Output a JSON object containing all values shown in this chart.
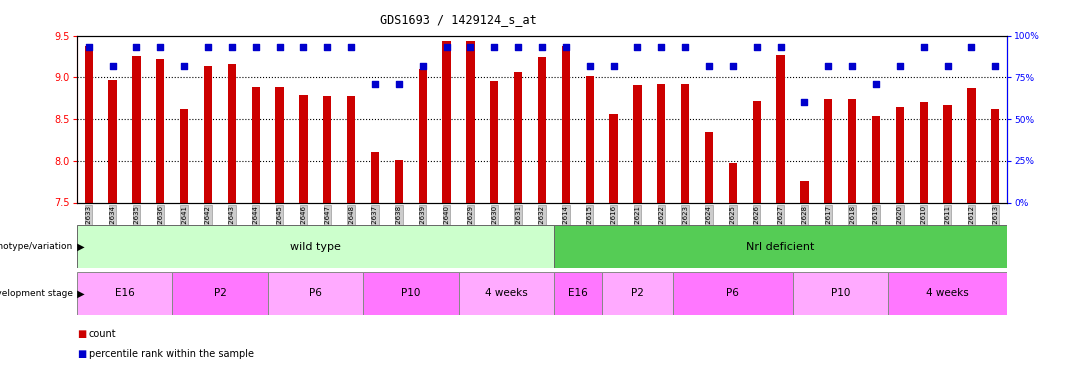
{
  "title": "GDS1693 / 1429124_s_at",
  "samples": [
    "GSM92633",
    "GSM92634",
    "GSM92635",
    "GSM92636",
    "GSM92641",
    "GSM92642",
    "GSM92643",
    "GSM92644",
    "GSM92645",
    "GSM92646",
    "GSM92647",
    "GSM92648",
    "GSM92637",
    "GSM92638",
    "GSM92639",
    "GSM92640",
    "GSM92629",
    "GSM92630",
    "GSM92631",
    "GSM92632",
    "GSM92614",
    "GSM92615",
    "GSM92616",
    "GSM92621",
    "GSM92622",
    "GSM92623",
    "GSM92624",
    "GSM92625",
    "GSM92626",
    "GSM92627",
    "GSM92628",
    "GSM92617",
    "GSM92618",
    "GSM92619",
    "GSM92620",
    "GSM92610",
    "GSM92611",
    "GSM92612",
    "GSM92613"
  ],
  "counts": [
    9.38,
    8.97,
    9.25,
    9.22,
    8.62,
    9.14,
    9.16,
    8.89,
    8.89,
    8.79,
    8.78,
    8.78,
    8.11,
    8.01,
    9.1,
    9.44,
    9.44,
    8.96,
    9.07,
    9.24,
    9.38,
    9.02,
    8.56,
    8.91,
    8.92,
    8.92,
    8.35,
    7.97,
    8.72,
    9.27,
    7.76,
    8.74,
    8.74,
    8.54,
    8.65,
    8.7,
    8.67,
    8.87,
    8.62
  ],
  "percentiles": [
    93,
    82,
    93,
    93,
    82,
    93,
    93,
    93,
    93,
    93,
    93,
    93,
    71,
    71,
    82,
    93,
    93,
    93,
    93,
    93,
    93,
    82,
    82,
    93,
    93,
    93,
    82,
    82,
    93,
    93,
    60,
    82,
    82,
    71,
    82,
    93,
    82,
    93,
    82
  ],
  "ylim_left": [
    7.5,
    9.5
  ],
  "ylim_right": [
    0,
    100
  ],
  "bar_color": "#cc0000",
  "dot_color": "#0000cc",
  "bg_color": "#ffffff",
  "genotype_groups": [
    {
      "label": "wild type",
      "start": 0,
      "end": 20,
      "color": "#ccffcc"
    },
    {
      "label": "Nrl deficient",
      "start": 20,
      "end": 39,
      "color": "#55cc55"
    }
  ],
  "stage_groups": [
    {
      "label": "E16",
      "start": 0,
      "end": 4,
      "color": "#ffaaff"
    },
    {
      "label": "P2",
      "start": 4,
      "end": 8,
      "color": "#ff77ff"
    },
    {
      "label": "P6",
      "start": 8,
      "end": 12,
      "color": "#ffaaff"
    },
    {
      "label": "P10",
      "start": 12,
      "end": 16,
      "color": "#ff77ff"
    },
    {
      "label": "4 weeks",
      "start": 16,
      "end": 20,
      "color": "#ffaaff"
    },
    {
      "label": "E16",
      "start": 20,
      "end": 22,
      "color": "#ff77ff"
    },
    {
      "label": "P2",
      "start": 22,
      "end": 25,
      "color": "#ffaaff"
    },
    {
      "label": "P6",
      "start": 25,
      "end": 30,
      "color": "#ff77ff"
    },
    {
      "label": "P10",
      "start": 30,
      "end": 34,
      "color": "#ffaaff"
    },
    {
      "label": "4 weeks",
      "start": 34,
      "end": 39,
      "color": "#ff77ff"
    }
  ]
}
